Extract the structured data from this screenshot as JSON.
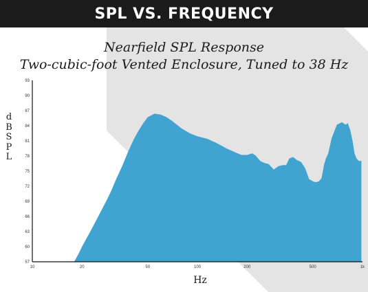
{
  "banner": {
    "title": "SPL VS. FREQUENCY"
  },
  "colors": {
    "banner": "#1b1b1b",
    "fill": "#41a3d0",
    "background_shape": "#e4e4e4"
  },
  "chart_data": {
    "type": "area",
    "title": "Nearfield SPL Response",
    "subtitle": "Two-cubic-foot Vented Enclosure, Tuned to 38 Hz",
    "xlabel": "Hz",
    "ylabel": "dBSPL",
    "x_scale": "log",
    "xlim": [
      10,
      1000
    ],
    "ylim": [
      57,
      93
    ],
    "x_ticks": [
      {
        "value": 10,
        "label": "10"
      },
      {
        "value": 20,
        "label": "20"
      },
      {
        "value": 50,
        "label": "50"
      },
      {
        "value": 100,
        "label": "100"
      },
      {
        "value": 200,
        "label": "200"
      },
      {
        "value": 500,
        "label": "500"
      },
      {
        "value": 1000,
        "label": "1k"
      }
    ],
    "y_ticks": [
      57,
      60,
      63,
      66,
      69,
      72,
      75,
      78,
      81,
      84,
      87,
      90,
      93
    ],
    "grid": false,
    "series": [
      {
        "x": [
          17.9,
          19,
          20,
          22,
          24,
          26,
          28,
          30,
          32,
          35,
          38,
          41,
          44,
          47,
          50,
          55,
          60,
          65,
          70,
          80,
          90,
          100,
          115,
          130,
          150,
          170,
          185,
          200,
          215,
          225,
          240,
          255,
          270,
          290,
          310,
          330,
          345,
          360,
          380,
          400,
          425,
          450,
          475,
          505,
          525,
          545,
          565,
          585,
          600,
          620,
          650,
          700,
          750,
          790,
          815,
          845,
          870,
          895,
          920,
          950,
          985
        ],
        "y": [
          57.0,
          58.5,
          60.0,
          62.5,
          64.8,
          67.0,
          69.0,
          71.0,
          73.2,
          76.0,
          78.8,
          81.2,
          83.0,
          84.5,
          85.7,
          86.4,
          86.2,
          85.7,
          85.0,
          83.5,
          82.5,
          81.9,
          81.4,
          80.6,
          79.5,
          78.7,
          78.2,
          78.2,
          78.5,
          78.1,
          77.0,
          76.6,
          76.4,
          75.3,
          76.0,
          76.2,
          76.2,
          77.5,
          77.8,
          77.2,
          76.8,
          75.5,
          73.4,
          72.9,
          72.8,
          73.0,
          73.6,
          76.3,
          77.5,
          78.5,
          81.5,
          84.2,
          84.7,
          84.2,
          84.5,
          83.0,
          81.0,
          78.5,
          77.5,
          77.0,
          77.0
        ]
      }
    ]
  }
}
